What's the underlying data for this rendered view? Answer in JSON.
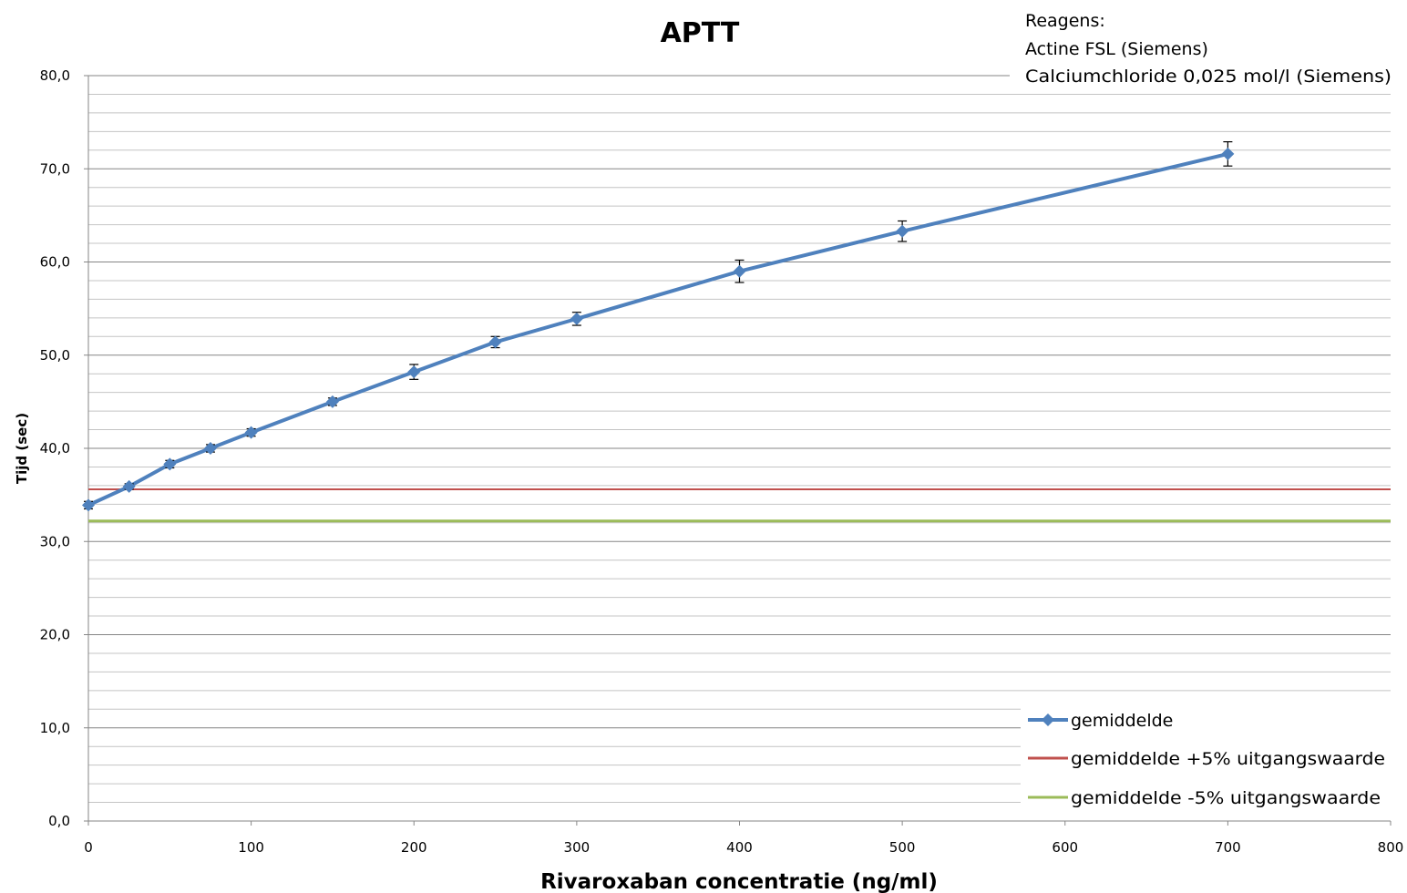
{
  "chart_data": {
    "type": "line",
    "title": "APTT",
    "xlabel": "Rivaroxaban concentratie (ng/ml)",
    "ylabel": "Tijd (sec)",
    "xlim": [
      0,
      800
    ],
    "ylim": [
      0,
      80
    ],
    "x_ticks": [
      "0",
      "100",
      "200",
      "300",
      "400",
      "500",
      "600",
      "700",
      "800"
    ],
    "y_ticks": [
      "0,0",
      "10,0",
      "20,0",
      "30,0",
      "40,0",
      "50,0",
      "60,0",
      "70,0",
      "80,0"
    ],
    "grid": "horizontal major and minor",
    "legend_position": "bottom-right",
    "annotation": [
      "Reagens:",
      "Actine FSL (Siemens)",
      "Calciumchloride 0,025 mol/l (Siemens)"
    ],
    "series": [
      {
        "name": "gemiddelde",
        "color": "#4F81BD",
        "marker": "diamond",
        "x": [
          0,
          25,
          50,
          75,
          100,
          150,
          200,
          250,
          300,
          400,
          500,
          700
        ],
        "y": [
          33.9,
          35.9,
          38.3,
          40.0,
          41.7,
          45.0,
          48.2,
          51.4,
          53.9,
          59.0,
          63.3,
          71.6
        ],
        "error": [
          0.4,
          0.3,
          0.4,
          0.4,
          0.4,
          0.4,
          0.8,
          0.6,
          0.7,
          1.2,
          1.1,
          1.3
        ]
      },
      {
        "name": "gemiddelde +5% uitgangswaarde",
        "color": "#C0504D",
        "x": [
          0,
          800
        ],
        "y": [
          35.6,
          35.6
        ]
      },
      {
        "name": "gemiddelde -5% uitgangswaarde",
        "color": "#9BBB59",
        "x": [
          0,
          800
        ],
        "y": [
          32.2,
          32.2
        ]
      }
    ]
  }
}
